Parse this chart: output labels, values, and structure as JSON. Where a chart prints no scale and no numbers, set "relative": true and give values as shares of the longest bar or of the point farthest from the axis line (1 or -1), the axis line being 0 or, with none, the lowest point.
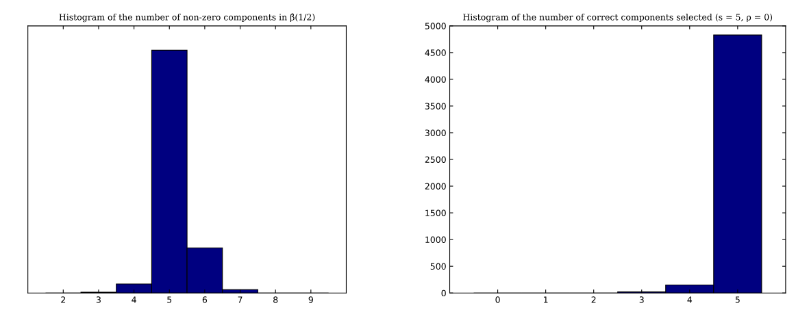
{
  "chart_data": [
    {
      "type": "bar",
      "title": "Histogram of the number of non-zero components in β̂(1/2)",
      "relative": true,
      "categories": [
        "2",
        "3",
        "4",
        "5",
        "6",
        "7",
        "8",
        "9"
      ],
      "values": [
        0,
        0.003,
        0.037,
        1,
        0.186,
        0.014,
        0,
        0
      ],
      "color": "#000080"
    },
    {
      "type": "histogram",
      "title": "Histogram of the number of correct components selected (s = 5, ρ = 0)",
      "bins": [
        -0.5,
        0.5,
        1.5,
        2.5,
        3.5,
        4.5,
        5.5
      ],
      "values": [
        0,
        0,
        0,
        20,
        150,
        4830
      ],
      "color": "#000080",
      "xlim": [
        -1,
        6
      ],
      "xticks": [
        0,
        1,
        2,
        3,
        4,
        5
      ],
      "ylim": [
        0,
        5000
      ],
      "yticks": [
        0,
        500,
        1000,
        1500,
        2000,
        2500,
        3000,
        3500,
        4000,
        4500,
        5000
      ]
    }
  ]
}
